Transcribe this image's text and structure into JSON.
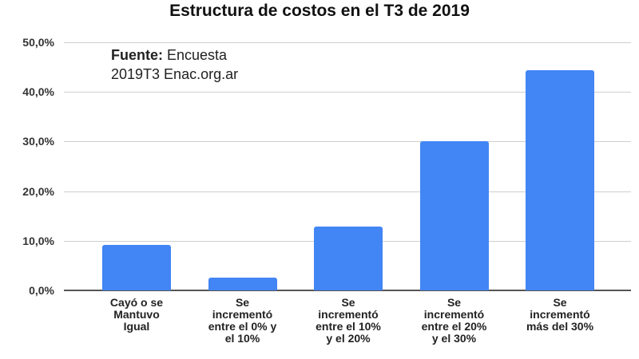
{
  "chart_data": {
    "type": "bar",
    "title": "Estructura de costos en el T3 de 2019",
    "xlabel": "",
    "ylabel": "",
    "ylim": [
      0,
      50
    ],
    "yticks": [
      "0,0%",
      "10,0%",
      "20,0%",
      "30,0%",
      "40,0%",
      "50,0%"
    ],
    "grid": true,
    "legend": "none",
    "categories": [
      "Cayó o se Mantuvo Igual",
      "Se incrementó entre el 0% y el 10%",
      "Se incrementó entre el 10% y el 20%",
      "Se incrementó entre el 20% y el 30%",
      "Se incrementó más del 30%"
    ],
    "category_lines": [
      "Cayó o se\nMantuvo\nIgual",
      "Se\nincrementó\nentre el 0% y\nel 10%",
      "Se\nincrementó\nentre el 10%\ny el 20%",
      "Se\nincrementó\nentre el 20%\ny el 30%",
      "Se\nincrementó\nmás del 30%"
    ],
    "values": [
      9.1,
      2.6,
      12.9,
      30.1,
      44.4
    ],
    "unit": "%",
    "bar_color": "#4285f4",
    "annotation": {
      "label_bold": "Fuente:",
      "text_line1": " Encuesta",
      "text_line2": "2019T3 Enac.org.ar"
    }
  }
}
